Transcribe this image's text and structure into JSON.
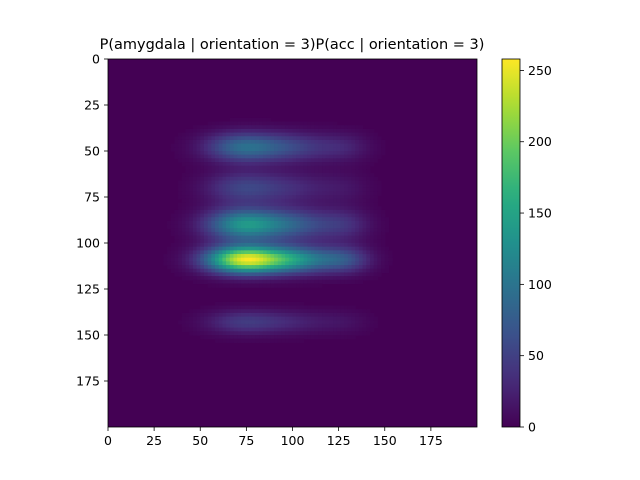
{
  "chart_data": {
    "type": "heatmap",
    "title": "P(amygdala | orientation = 3)P(acc | orientation = 3)",
    "xlabel": "",
    "ylabel": "",
    "xlim": [
      0,
      200
    ],
    "ylim": [
      200,
      0
    ],
    "x_ticks": [
      0,
      25,
      50,
      75,
      100,
      125,
      150,
      175
    ],
    "y_ticks": [
      0,
      25,
      50,
      75,
      100,
      125,
      150,
      175
    ],
    "colormap": "viridis",
    "colorbar": {
      "min": 0,
      "max": 258,
      "ticks": [
        0,
        50,
        100,
        150,
        200,
        250
      ]
    },
    "grid": false,
    "x_profile": {
      "components": [
        {
          "center": 73,
          "sigma": 14,
          "weight": 1.0
        },
        {
          "center": 100,
          "sigma": 15,
          "weight": 0.55
        },
        {
          "center": 128,
          "sigma": 10,
          "weight": 0.25
        }
      ]
    },
    "y_profile": {
      "components": [
        {
          "center": 48,
          "sigma": 5.5,
          "weight": 0.38
        },
        {
          "center": 70,
          "sigma": 6,
          "weight": 0.22
        },
        {
          "center": 90,
          "sigma": 6,
          "weight": 0.55
        },
        {
          "center": 109,
          "sigma": 5,
          "weight": 1.0
        },
        {
          "center": 143,
          "sigma": 4.5,
          "weight": 0.18
        }
      ]
    }
  }
}
